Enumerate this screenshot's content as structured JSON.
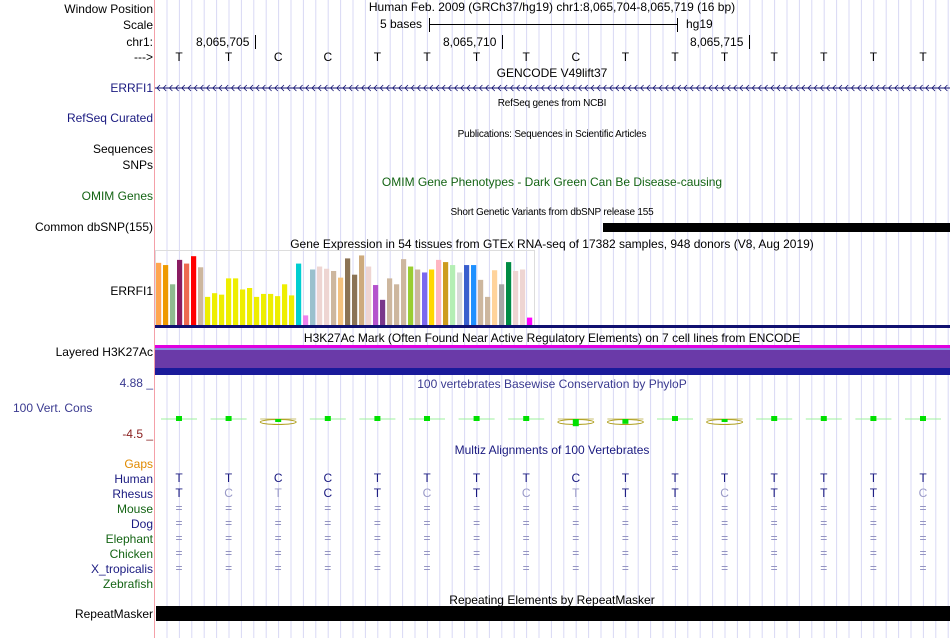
{
  "header": {
    "window_position_label": "Window Position",
    "scale_label": "Scale",
    "chrom_label": "chr1:",
    "strand_label": "--->",
    "assembly_title": "Human Feb. 2009 (GRCh37/hg19)   chr1:8,065,704-8,065,719 (16 bp)",
    "scale_text": "5 bases",
    "scale_db": "hg19",
    "positions": [
      "8,065,705",
      "8,065,710",
      "8,065,715"
    ]
  },
  "sequence": [
    "T",
    "T",
    "C",
    "C",
    "T",
    "T",
    "T",
    "T",
    "C",
    "T",
    "T",
    "T",
    "T",
    "T",
    "T",
    "T"
  ],
  "tracks": {
    "gencode": {
      "label": "ERRFI1",
      "title": "GENCODE V49lift37"
    },
    "refseq": {
      "label": "RefSeq Curated",
      "title": "RefSeq genes from NCBI"
    },
    "publications": {
      "label_line1": "Sequences",
      "title": "Publications: Sequences in Scientific Articles"
    },
    "snps_label": "SNPs",
    "omim": {
      "label": "OMIM Genes",
      "title": "OMIM Gene Phenotypes - Dark Green Can Be Disease-causing"
    },
    "dbsnp": {
      "label": "Common dbSNP(155)",
      "title": "Short Genetic Variants from dbSNP release 155"
    },
    "gtex": {
      "label": "ERRFI1",
      "title": "Gene Expression in 54 tissues from GTEx RNA-seq of 17382 samples, 948 donors (V8, Aug 2019)"
    },
    "h3k27ac": {
      "label": "Layered H3K27Ac",
      "title": "H3K27Ac Mark (Often Found Near Active Regulatory Elements) on 7 cell lines from ENCODE"
    },
    "conservation": {
      "label": "100 Vert. Cons",
      "max_label": "4.88 _",
      "min_label": "-4.5 _",
      "title": "100 vertebrates Basewise Conservation by PhyloP",
      "phylop_scores": [
        0.6,
        0.6,
        -0.4,
        0.1,
        1.0,
        0.3,
        0.3,
        0.6,
        -1.2,
        -0.8,
        1.0,
        -0.3,
        1.0,
        0.4,
        0.4,
        0.4
      ]
    },
    "multiz": {
      "title": "Multiz Alignments of 100 Vertebrates",
      "gaps_label": "Gaps",
      "species": [
        {
          "name": "Human",
          "color": "navy",
          "bases": [
            "T",
            "T",
            "C",
            "C",
            "T",
            "T",
            "T",
            "T",
            "C",
            "T",
            "T",
            "T",
            "T",
            "T",
            "T",
            "T"
          ]
        },
        {
          "name": "Rhesus",
          "color": "navy",
          "bases": [
            "T",
            "C",
            "T",
            "C",
            "T",
            "C",
            "T",
            "C",
            "T",
            "T",
            "T",
            "C",
            "T",
            "T",
            "T",
            "C"
          ]
        },
        {
          "name": "Mouse",
          "color": "green",
          "bases": [
            "=",
            "=",
            "=",
            "=",
            "=",
            "=",
            "=",
            "=",
            "=",
            "=",
            "=",
            "=",
            "=",
            "=",
            "=",
            "="
          ]
        },
        {
          "name": "Dog",
          "color": "navy",
          "bases": [
            "=",
            "=",
            "=",
            "=",
            "=",
            "=",
            "=",
            "=",
            "=",
            "=",
            "=",
            "=",
            "=",
            "=",
            "=",
            "="
          ]
        },
        {
          "name": "Elephant",
          "color": "green",
          "bases": [
            "=",
            "=",
            "=",
            "=",
            "=",
            "=",
            "=",
            "=",
            "=",
            "=",
            "=",
            "=",
            "=",
            "=",
            "=",
            "="
          ]
        },
        {
          "name": "Chicken",
          "color": "green",
          "bases": [
            "=",
            "=",
            "=",
            "=",
            "=",
            "=",
            "=",
            "=",
            "=",
            "=",
            "=",
            "=",
            "=",
            "=",
            "=",
            "="
          ]
        },
        {
          "name": "X_tropicalis",
          "color": "navy",
          "bases": [
            "=",
            "=",
            "=",
            "=",
            "=",
            "=",
            "=",
            "=",
            "=",
            "=",
            "=",
            "=",
            "=",
            "=",
            "=",
            "="
          ]
        },
        {
          "name": "Zebrafish",
          "color": "green",
          "bases": []
        }
      ],
      "rhesus_match": [
        true,
        false,
        false,
        true,
        true,
        false,
        true,
        false,
        false,
        true,
        true,
        false,
        true,
        true,
        true,
        false
      ]
    },
    "repeatmasker": {
      "label": "RepeatMasker",
      "title": "Repeating Elements by RepeatMasker"
    }
  },
  "chart_data": {
    "type": "bar",
    "title": "Gene Expression in 54 tissues from GTEx RNA-seq of 17382 samples, 948 donors (V8, Aug 2019)",
    "xlabel": "",
    "ylabel": "",
    "ylim": [
      0,
      1
    ],
    "values": [
      0.84,
      0.81,
      0.55,
      0.88,
      0.83,
      0.93,
      0.78,
      0.38,
      0.43,
      0.41,
      0.63,
      0.63,
      0.48,
      0.5,
      0.38,
      0.42,
      0.42,
      0.39,
      0.55,
      0.4,
      0.83,
      0.13,
      0.75,
      0.79,
      0.76,
      0.73,
      0.64,
      0.9,
      0.68,
      0.94,
      0.79,
      0.54,
      0.34,
      0.63,
      0.55,
      0.89,
      0.79,
      0.75,
      0.71,
      0.75,
      0.88,
      0.85,
      0.81,
      0.71,
      0.81,
      0.81,
      0.61,
      0.38,
      0.74,
      0.55,
      0.85,
      0.73,
      0.75,
      0.1
    ],
    "colors": [
      "#FFA54F",
      "#EE9A00",
      "#8FBC8F",
      "#8B1C62",
      "#EE6A50",
      "#FF0000",
      "#CDB79E",
      "#EEEE00",
      "#EEEE00",
      "#EEEE00",
      "#EEEE00",
      "#EEEE00",
      "#EEEE00",
      "#EEEE00",
      "#EEEE00",
      "#EEEE00",
      "#EEEE00",
      "#EEEE00",
      "#EEEE00",
      "#EEEE00",
      "#00CED1",
      "#EE82EE",
      "#9AC0CD",
      "#EED5D2",
      "#EED5D2",
      "#CDB79E",
      "#F4C27F",
      "#8B7355",
      "#8B7355",
      "#CDAA7D",
      "#EED5D2",
      "#B452CD",
      "#7A378B",
      "#CDB79E",
      "#CDB79E",
      "#CDB79E",
      "#9ACD32",
      "#CDB79E",
      "#7B68EE",
      "#FFD700",
      "#FFB6C1",
      "#CD9B1D",
      "#B4EEB4",
      "#D9D9D9",
      "#3A5FCD",
      "#1E90FF",
      "#CDB79E",
      "#CDB79E",
      "#FFD39B",
      "#A6A6A6",
      "#008B45",
      "#EED5D2",
      "#EED5D2",
      "#FF00FF"
    ]
  }
}
